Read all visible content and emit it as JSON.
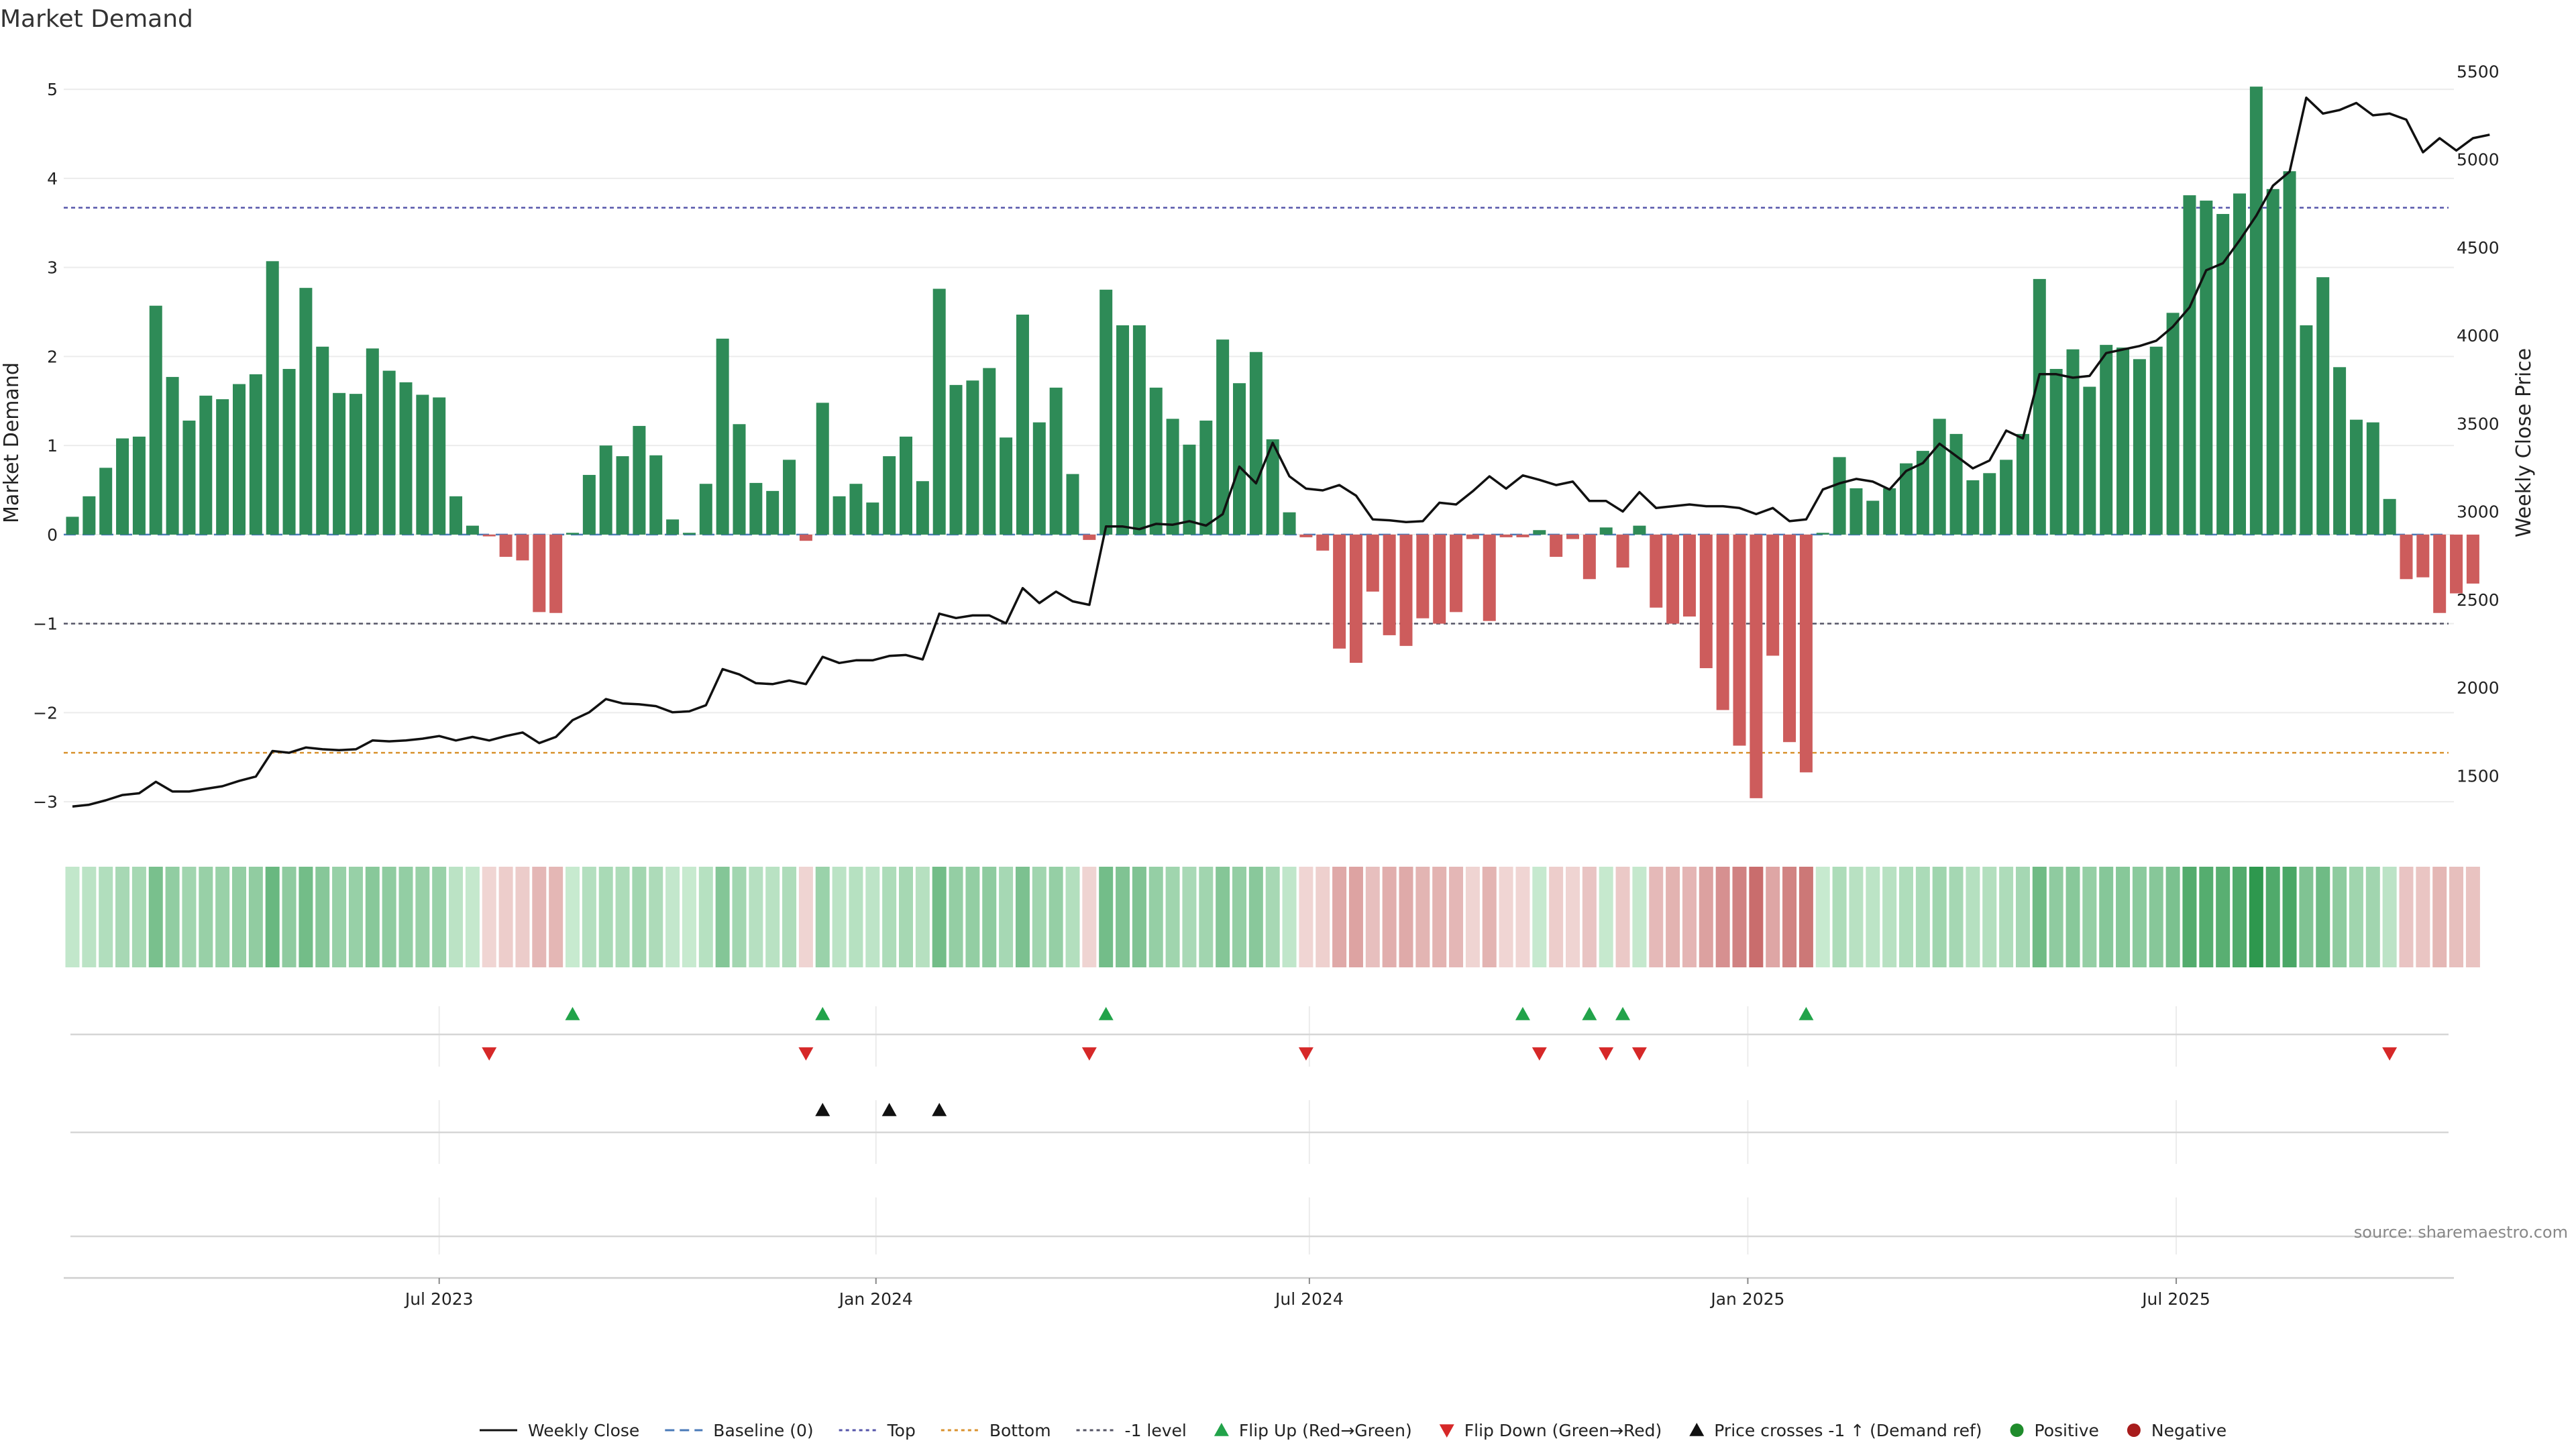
{
  "chart_data": {
    "type": "bar",
    "title": "Market Demand",
    "ylabel_left": "Market Demand",
    "ylabel_right": "Weekly Close Price",
    "ylim_left": [
      -3.3,
      5.4
    ],
    "ylim_right": [
      1200,
      5600
    ],
    "yticks_left": [
      5,
      4,
      3,
      2,
      1,
      0,
      -1,
      -2,
      -3
    ],
    "yticks_left_labels": [
      "5",
      "4",
      "3",
      "2",
      "1",
      "0",
      "−1",
      "−2",
      "−3"
    ],
    "yticks_right": [
      5500,
      5000,
      4500,
      4000,
      3500,
      3000,
      2500,
      2000,
      1500
    ],
    "yticks_right_labels": [
      "5500",
      "5000",
      "4500",
      "4000",
      "3500",
      "3000",
      "2500",
      "2000",
      "1500"
    ],
    "x_ticks": [
      {
        "index": 22,
        "label": "Jul 2023"
      },
      {
        "index": 48.2,
        "label": "Jan 2024"
      },
      {
        "index": 74.2,
        "label": "Jul 2024"
      },
      {
        "index": 100.5,
        "label": "Jan 2025"
      },
      {
        "index": 126.2,
        "label": "Jul 2025"
      }
    ],
    "reference_lines": [
      {
        "name": "Baseline (0)",
        "value": 0,
        "color": "#4a7ab8"
      },
      {
        "name": "Top",
        "value": 3.67,
        "color": "#5555aa"
      },
      {
        "name": "Bottom",
        "value": -2.45,
        "color": "#d9922e"
      },
      {
        "name": "-1 level",
        "value": -1,
        "color": "#555566"
      }
    ],
    "demand": [
      0.2,
      0.43,
      0.75,
      1.08,
      1.1,
      2.57,
      1.77,
      1.28,
      1.56,
      1.52,
      1.69,
      1.8,
      3.07,
      1.86,
      2.77,
      2.11,
      1.59,
      1.58,
      2.09,
      1.84,
      1.71,
      1.57,
      1.54,
      0.43,
      0.1,
      -0.02,
      -0.25,
      -0.29,
      -0.87,
      -0.88,
      0.02,
      0.67,
      1.0,
      0.88,
      1.22,
      0.89,
      0.17,
      0.02,
      0.57,
      2.2,
      1.24,
      0.58,
      0.49,
      0.84,
      -0.07,
      1.48,
      0.43,
      0.57,
      0.36,
      0.88,
      1.1,
      0.6,
      2.76,
      1.68,
      1.73,
      1.87,
      1.09,
      2.47,
      1.26,
      1.65,
      0.68,
      -0.06,
      2.75,
      2.35,
      2.35,
      1.65,
      1.3,
      1.01,
      1.28,
      2.19,
      1.7,
      2.05,
      1.07,
      0.25,
      -0.03,
      -0.18,
      -1.28,
      -1.44,
      -0.64,
      -1.13,
      -1.25,
      -0.94,
      -1.0,
      -0.87,
      -0.05,
      -0.97,
      -0.03,
      -0.03,
      0.05,
      -0.25,
      -0.05,
      -0.5,
      0.08,
      -0.37,
      0.1,
      -0.82,
      -1.0,
      -0.92,
      -1.5,
      -1.97,
      -2.37,
      -2.96,
      -1.36,
      -2.33,
      -2.67,
      0.02,
      0.87,
      0.52,
      0.38,
      0.52,
      0.8,
      0.94,
      1.3,
      1.13,
      0.61,
      0.69,
      0.84,
      1.13,
      2.87,
      1.86,
      2.08,
      1.66,
      2.13,
      2.1,
      1.97,
      2.11,
      2.49,
      3.81,
      3.75,
      3.6,
      3.83,
      5.03,
      3.88,
      4.08,
      2.35,
      2.89,
      1.88,
      1.29,
      1.26,
      0.4,
      -0.5,
      -0.48,
      -0.88,
      -0.66,
      -0.55
    ],
    "weekly_close": [
      1325,
      1335,
      1360,
      1390,
      1400,
      1465,
      1410,
      1410,
      1425,
      1440,
      1470,
      1495,
      1640,
      1630,
      1660,
      1650,
      1645,
      1650,
      1700,
      1695,
      1700,
      1710,
      1725,
      1700,
      1720,
      1700,
      1725,
      1745,
      1685,
      1720,
      1815,
      1860,
      1935,
      1910,
      1905,
      1895,
      1860,
      1865,
      1900,
      2105,
      2075,
      2025,
      2020,
      2040,
      2020,
      2175,
      2140,
      2155,
      2155,
      2180,
      2185,
      2160,
      2420,
      2395,
      2410,
      2410,
      2365,
      2565,
      2480,
      2545,
      2490,
      2470,
      2915,
      2915,
      2900,
      2930,
      2925,
      2945,
      2920,
      2985,
      3255,
      3160,
      3390,
      3200,
      3130,
      3120,
      3150,
      3090,
      2955,
      2950,
      2940,
      2945,
      3050,
      3040,
      3115,
      3200,
      3130,
      3205,
      3180,
      3150,
      3170,
      3060,
      3060,
      3000,
      3110,
      3020,
      3030,
      3040,
      3030,
      3030,
      3020,
      2985,
      3020,
      2945,
      2955,
      3125,
      3160,
      3185,
      3170,
      3125,
      3230,
      3275,
      3385,
      3315,
      3245,
      3290,
      3460,
      3415,
      3780,
      3780,
      3760,
      3770,
      3900,
      3920,
      3940,
      3970,
      4050,
      4160,
      4370,
      4410,
      4540,
      4680,
      4850,
      4930,
      5350,
      5260,
      5280,
      5320,
      5250,
      5260,
      5225,
      5040,
      5120,
      5050,
      5120,
      5140
    ],
    "flip_up_indices": [
      30,
      45,
      62,
      87,
      91,
      93,
      104
    ],
    "flip_down_indices": [
      25,
      44,
      61,
      74,
      88,
      92,
      94,
      139
    ],
    "price_cross_indices": [
      45,
      49,
      52
    ],
    "legend": [
      "Weekly Close",
      "Baseline (0)",
      "Top",
      "Bottom",
      "-1 level",
      "Flip Up (Red→Green)",
      "Flip Down (Green→Red)",
      "Price crosses -1 ↑ (Demand ref)",
      "Positive",
      "Negative"
    ]
  },
  "colors": {
    "positive": "#2e8b57",
    "negative": "#cd5c5c",
    "flip_up": "#22a34a",
    "flip_down": "#d62828",
    "price_cross": "#111111",
    "line": "#111111",
    "positive_dot": "#1f8c2c",
    "negative_dot": "#a81c1c"
  },
  "source": "source: sharemaestro.com"
}
